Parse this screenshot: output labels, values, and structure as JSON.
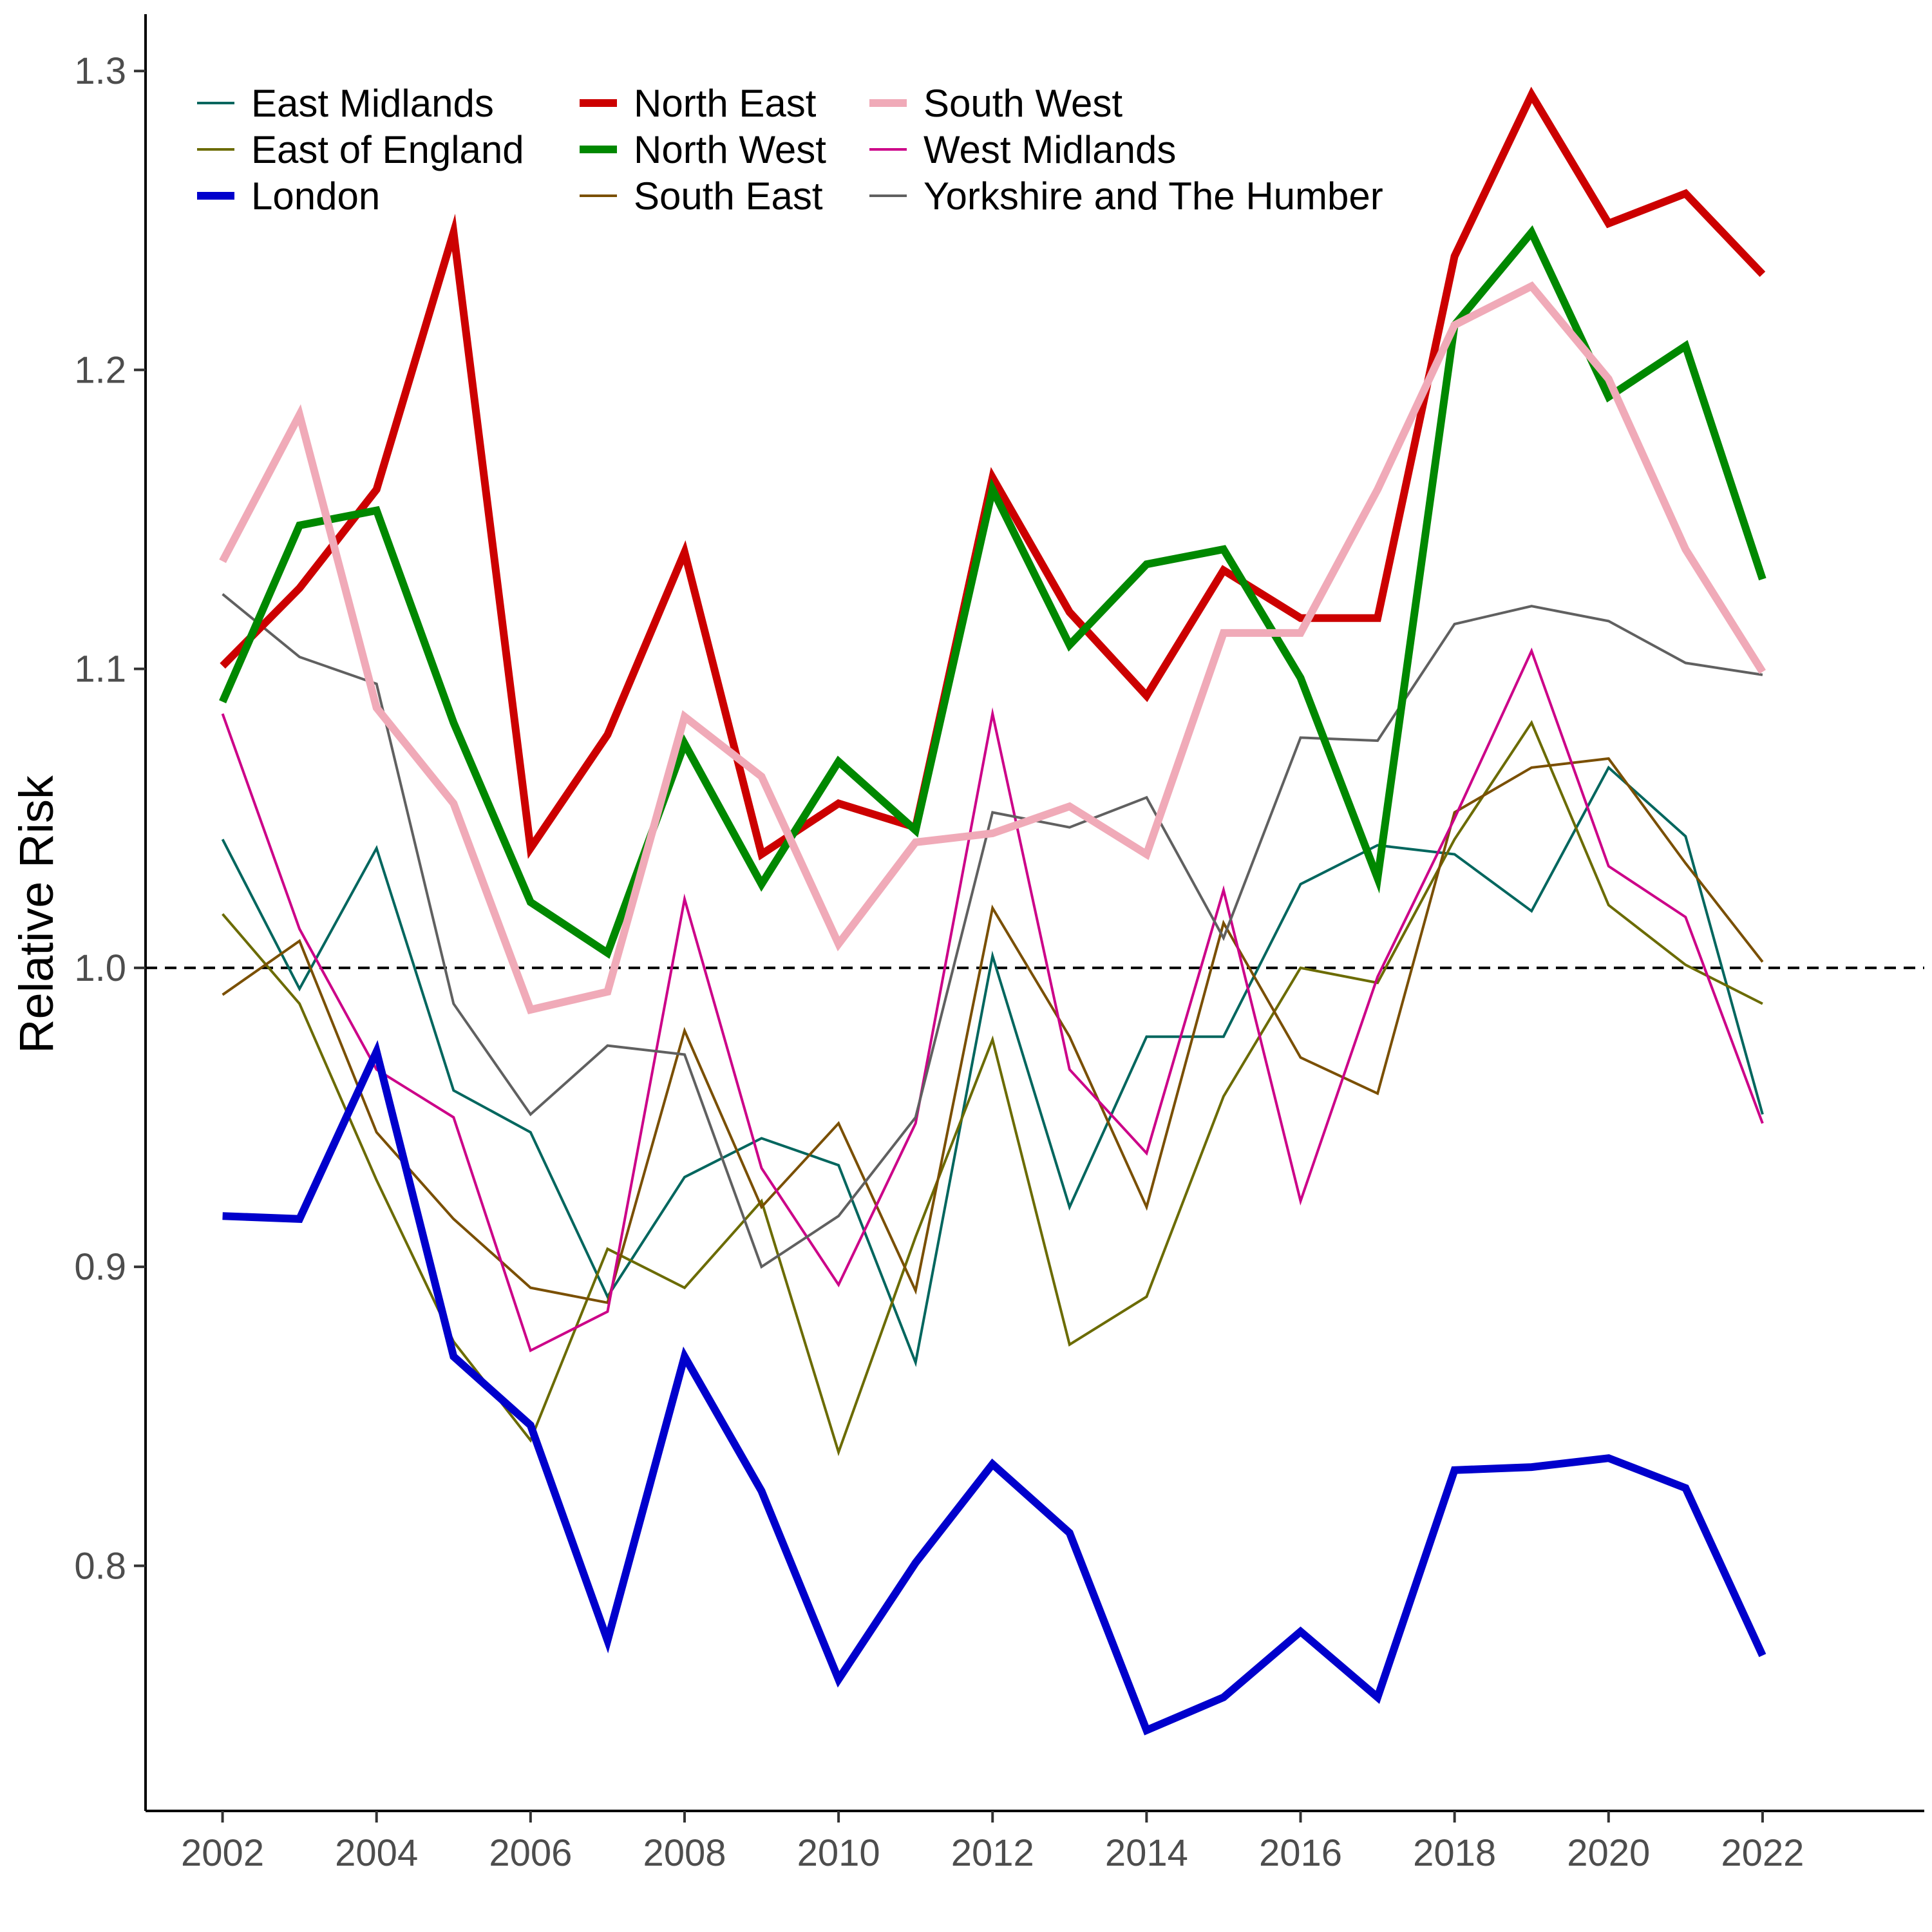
{
  "chart_data": {
    "type": "line",
    "title": "",
    "xlabel": "",
    "ylabel": "Relative Risk",
    "x": [
      2002,
      2003,
      2004,
      2005,
      2006,
      2007,
      2008,
      2009,
      2010,
      2011,
      2012,
      2013,
      2014,
      2015,
      2016,
      2017,
      2018,
      2019,
      2020,
      2021,
      2022
    ],
    "xlim": [
      2001,
      2024.1
    ],
    "ylim": [
      0.718,
      1.319
    ],
    "x_ticks": [
      2002,
      2004,
      2006,
      2008,
      2010,
      2012,
      2014,
      2016,
      2018,
      2020,
      2022
    ],
    "y_ticks": [
      0.8,
      0.9,
      1.0,
      1.1,
      1.2,
      1.3
    ],
    "y_tick_labels": [
      "0.8",
      "0.9",
      "1.0",
      "1.1",
      "1.2",
      "1.3"
    ],
    "reference_line": 1.0,
    "grid": false,
    "legend_position": "top-left",
    "series": [
      {
        "name": "East Midlands",
        "color": "#00665e",
        "emphasis": "thin",
        "values": [
          1.043,
          0.993,
          1.04,
          0.959,
          0.945,
          0.89,
          0.93,
          0.943,
          0.934,
          0.868,
          1.004,
          0.92,
          0.977,
          0.977,
          1.028,
          1.041,
          1.038,
          1.019,
          1.067,
          1.044,
          0.951
        ]
      },
      {
        "name": "East of England",
        "color": "#6b6b00",
        "emphasis": "thin",
        "values": [
          1.018,
          0.988,
          0.929,
          0.875,
          0.842,
          0.906,
          0.893,
          0.922,
          0.838,
          0.91,
          0.976,
          0.874,
          0.89,
          0.957,
          1.0,
          0.995,
          1.043,
          1.082,
          1.021,
          1.001,
          0.988
        ]
      },
      {
        "name": "London",
        "color": "#0000cc",
        "emphasis": "bold",
        "values": [
          0.917,
          0.916,
          0.972,
          0.87,
          0.847,
          0.775,
          0.87,
          0.825,
          0.762,
          0.801,
          0.834,
          0.811,
          0.745,
          0.756,
          0.778,
          0.756,
          0.832,
          0.833,
          0.836,
          0.826,
          0.77
        ]
      },
      {
        "name": "North East",
        "color": "#cc0000",
        "emphasis": "bold",
        "values": [
          1.101,
          1.127,
          1.16,
          1.246,
          1.04,
          1.078,
          1.139,
          1.038,
          1.055,
          1.047,
          1.164,
          1.119,
          1.091,
          1.133,
          1.117,
          1.117,
          1.238,
          1.292,
          1.249,
          1.259,
          1.232
        ]
      },
      {
        "name": "North West",
        "color": "#008800",
        "emphasis": "bold",
        "values": [
          1.089,
          1.148,
          1.153,
          1.082,
          1.022,
          1.005,
          1.075,
          1.028,
          1.069,
          1.046,
          1.16,
          1.108,
          1.135,
          1.14,
          1.097,
          1.03,
          1.215,
          1.246,
          1.191,
          1.208,
          1.13
        ]
      },
      {
        "name": "South East",
        "color": "#7a4f00",
        "emphasis": "thin",
        "values": [
          0.991,
          1.009,
          0.945,
          0.916,
          0.893,
          0.888,
          0.979,
          0.92,
          0.948,
          0.892,
          1.02,
          0.977,
          0.92,
          1.015,
          0.97,
          0.958,
          1.052,
          1.067,
          1.07,
          1.035,
          1.002
        ]
      },
      {
        "name": "South West",
        "color": "#f0aab8",
        "emphasis": "bold",
        "values": [
          1.136,
          1.185,
          1.087,
          1.055,
          0.986,
          0.992,
          1.084,
          1.064,
          1.008,
          1.042,
          1.045,
          1.054,
          1.038,
          1.112,
          1.112,
          1.16,
          1.215,
          1.228,
          1.197,
          1.14,
          1.099
        ]
      },
      {
        "name": "West Midlands",
        "color": "#cc0088",
        "emphasis": "thin",
        "values": [
          1.085,
          1.013,
          0.966,
          0.95,
          0.872,
          0.885,
          1.023,
          0.933,
          0.894,
          0.948,
          1.085,
          0.966,
          0.938,
          1.026,
          0.922,
          0.997,
          1.05,
          1.106,
          1.034,
          1.017,
          0.948
        ]
      },
      {
        "name": "Yorkshire and The Humber",
        "color": "#606060",
        "emphasis": "thin",
        "values": [
          1.125,
          1.104,
          1.095,
          0.988,
          0.951,
          0.974,
          0.971,
          0.9,
          0.917,
          0.95,
          1.052,
          1.047,
          1.057,
          1.01,
          1.077,
          1.076,
          1.115,
          1.121,
          1.116,
          1.102,
          1.098
        ]
      }
    ]
  }
}
